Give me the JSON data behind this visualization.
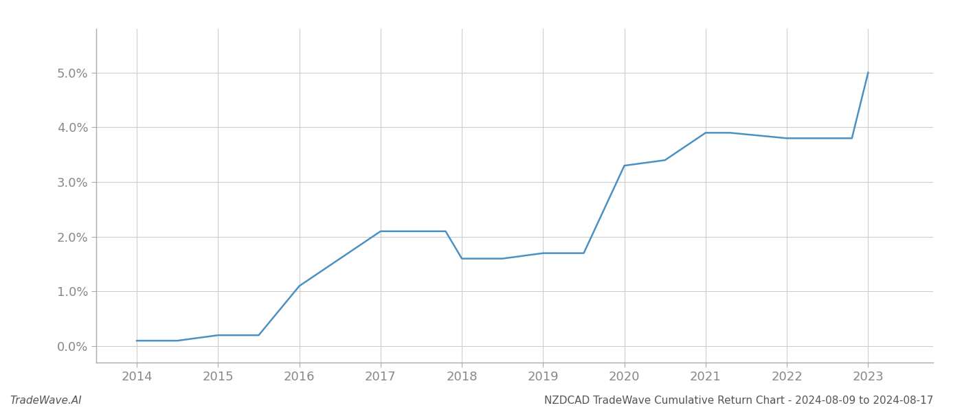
{
  "x_values": [
    2014,
    2014.5,
    2015,
    2015.5,
    2016,
    2017,
    2017.8,
    2018,
    2018.5,
    2019,
    2019.5,
    2020,
    2020.5,
    2021,
    2021.3,
    2022,
    2022.5,
    2022.8,
    2023
  ],
  "y_values": [
    0.001,
    0.001,
    0.002,
    0.002,
    0.011,
    0.021,
    0.021,
    0.016,
    0.016,
    0.017,
    0.017,
    0.033,
    0.034,
    0.039,
    0.039,
    0.038,
    0.038,
    0.038,
    0.05
  ],
  "line_color": "#4a90c4",
  "line_width": 1.8,
  "title": "NZDCAD TradeWave Cumulative Return Chart - 2024-08-09 to 2024-08-17",
  "xlim": [
    2013.5,
    2023.8
  ],
  "ylim": [
    -0.003,
    0.058
  ],
  "yticks": [
    0.0,
    0.01,
    0.02,
    0.03,
    0.04,
    0.05
  ],
  "xticks": [
    2014,
    2015,
    2016,
    2017,
    2018,
    2019,
    2020,
    2021,
    2022,
    2023
  ],
  "grid_color": "#cccccc",
  "grid_linewidth": 0.8,
  "background_color": "#ffffff",
  "watermark_text": "TradeWave.AI",
  "title_fontsize": 11,
  "tick_fontsize": 13,
  "watermark_fontsize": 11,
  "spine_color": "#aaaaaa",
  "tick_color": "#888888"
}
